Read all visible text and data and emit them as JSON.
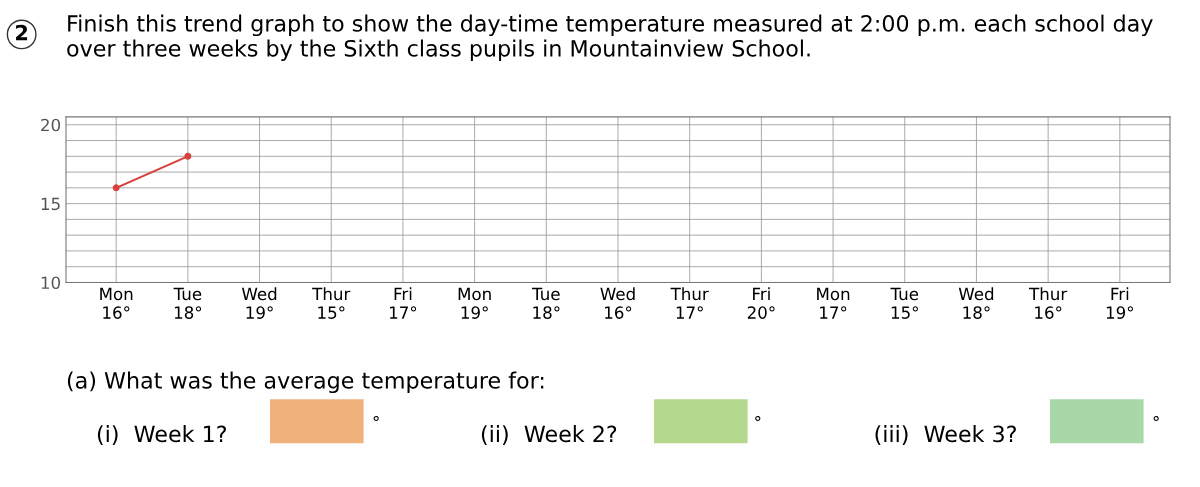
{
  "chart_data": {
    "type": "line",
    "title": "Finish this trend graph to show the day-time temperature measured at 2:00 p.m. each school day over three weeks by the Sixth class pupils in Mountainview School.",
    "categories": [
      "Mon\n16°",
      "Tue\n18°",
      "Wed\n19°",
      "Thur\n15°",
      "Fri\n17°",
      "Mon\n19°",
      "Tue\n18°",
      "Wed\n16°",
      "Thur\n17°",
      "Fri\n20°",
      "Mon\n17°",
      "Tue\n15°",
      "Wed\n18°",
      "Thur\n16°",
      "Fri\n19°"
    ],
    "series": [
      {
        "color": "#d9413c",
        "values": [
          16,
          18,
          null,
          null,
          null,
          null,
          null,
          null,
          null,
          null,
          null,
          null,
          null,
          null,
          null
        ]
      }
    ],
    "ylim": [
      10,
      20.5
    ],
    "yticks": [
      10,
      {
        "value": 11,
        "label": null
      },
      {
        "value": 12,
        "label": null
      },
      {
        "value": 13,
        "label": null
      },
      {
        "value": 14,
        "label": null
      },
      15,
      {
        "value": 16,
        "label": null
      },
      {
        "value": 17,
        "label": null
      },
      {
        "value": 18,
        "label": null
      },
      {
        "value": 19,
        "label": null
      },
      20
    ],
    "grid": true,
    "marker": "circle",
    "line_style": "solid",
    "annotations": [
      "2",
      "(a) What was the average temperature for:",
      "(i)  Week 1?",
      "°",
      "(ii)  Week 2?",
      "°",
      "(iii)  Week 3?",
      "°"
    ]
  }
}
